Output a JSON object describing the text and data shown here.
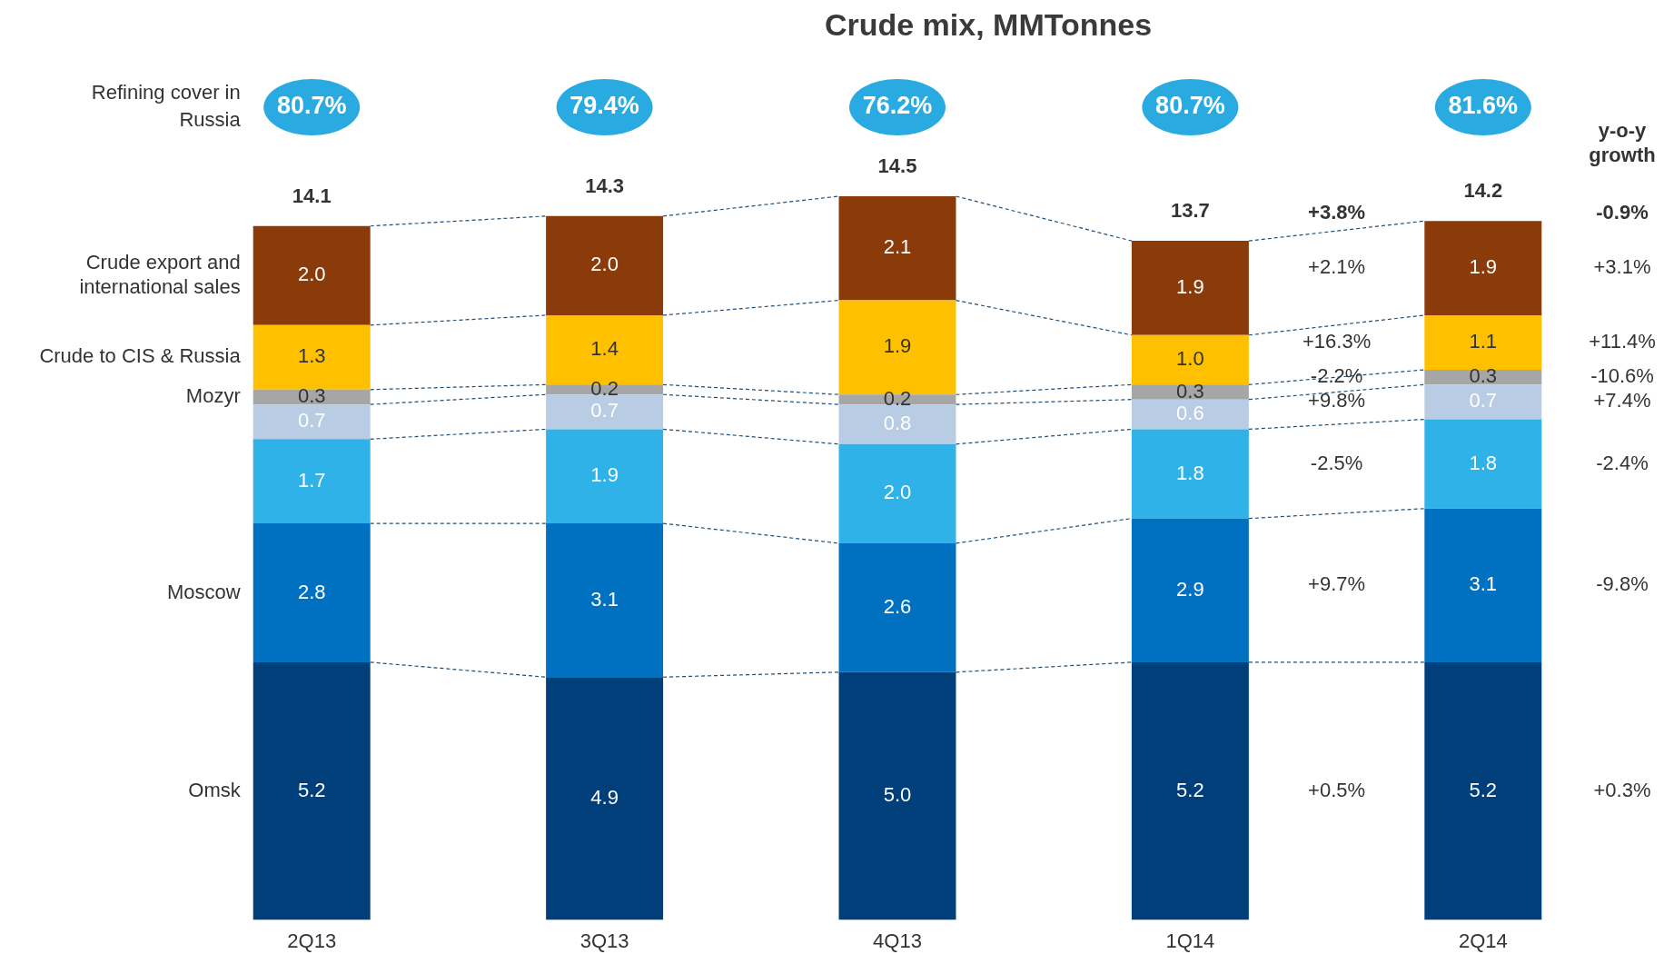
{
  "chart_data": {
    "type": "bar",
    "title": "Crude mix, MMTonnes",
    "stacked": true,
    "legend": false,
    "categories": [
      "2Q13",
      "3Q13",
      "4Q13",
      "1Q14",
      "2Q14"
    ],
    "series": [
      {
        "name": "Omsk",
        "color": "#003f7a",
        "values": [
          5.2,
          4.9,
          5.0,
          5.2,
          5.2
        ],
        "value_labels": [
          "5.2",
          "4.9",
          "5.0",
          "5.2",
          "5.2"
        ]
      },
      {
        "name": "Moscow",
        "color": "#0070c0",
        "values": [
          2.8,
          3.1,
          2.6,
          2.9,
          3.1
        ],
        "value_labels": [
          "2.8",
          "3.1",
          "2.6",
          "2.9",
          "3.1"
        ]
      },
      {
        "color": "#2eb2e8",
        "values": [
          1.7,
          1.9,
          2.0,
          1.8,
          1.8
        ],
        "value_labels": [
          "1.7",
          "1.9",
          "2.0",
          "1.8",
          "1.8"
        ]
      },
      {
        "color": "#b8cce4",
        "values": [
          0.7,
          0.7,
          0.8,
          0.6,
          0.7
        ],
        "value_labels": [
          "0.7",
          "0.7",
          "0.8",
          "0.6",
          "0.7"
        ]
      },
      {
        "name": "Mozyr",
        "color": "#a6a6a6",
        "values": [
          0.3,
          0.2,
          0.2,
          0.3,
          0.3
        ],
        "value_labels": [
          "0.3",
          "0.2",
          "0.2",
          "0.3",
          "0.3"
        ]
      },
      {
        "name": "Crude to CIS & Russia",
        "color": "#ffc000",
        "values": [
          1.3,
          1.4,
          1.9,
          1.0,
          1.1
        ],
        "value_labels": [
          "1.3",
          "1.4",
          "1.9",
          "1.0",
          "1.1"
        ]
      },
      {
        "name": "Crude export and international sales",
        "color": "#8b3a0a",
        "values": [
          2.0,
          2.0,
          2.1,
          1.9,
          1.9
        ],
        "value_labels": [
          "2.0",
          "2.0",
          "2.1",
          "1.9",
          "1.9"
        ]
      }
    ],
    "totals": [
      "14.1",
      "14.3",
      "14.5",
      "13.7",
      "14.2"
    ],
    "annotations": [
      "Refining cover in Russia",
      "80.7%",
      "79.4%",
      "76.2%",
      "80.7%",
      "81.6%",
      "y-o-y growth",
      "+3.8%",
      "+2.1%",
      "+16.3%",
      "-2.2%",
      "+9.8%",
      "-2.5%",
      "+9.7%",
      "+0.5%",
      "-0.9%",
      "+3.1%",
      "+11.4%",
      "-10.6%",
      "+7.4%",
      "-2.4%",
      "-9.8%",
      "+0.3%"
    ]
  }
}
